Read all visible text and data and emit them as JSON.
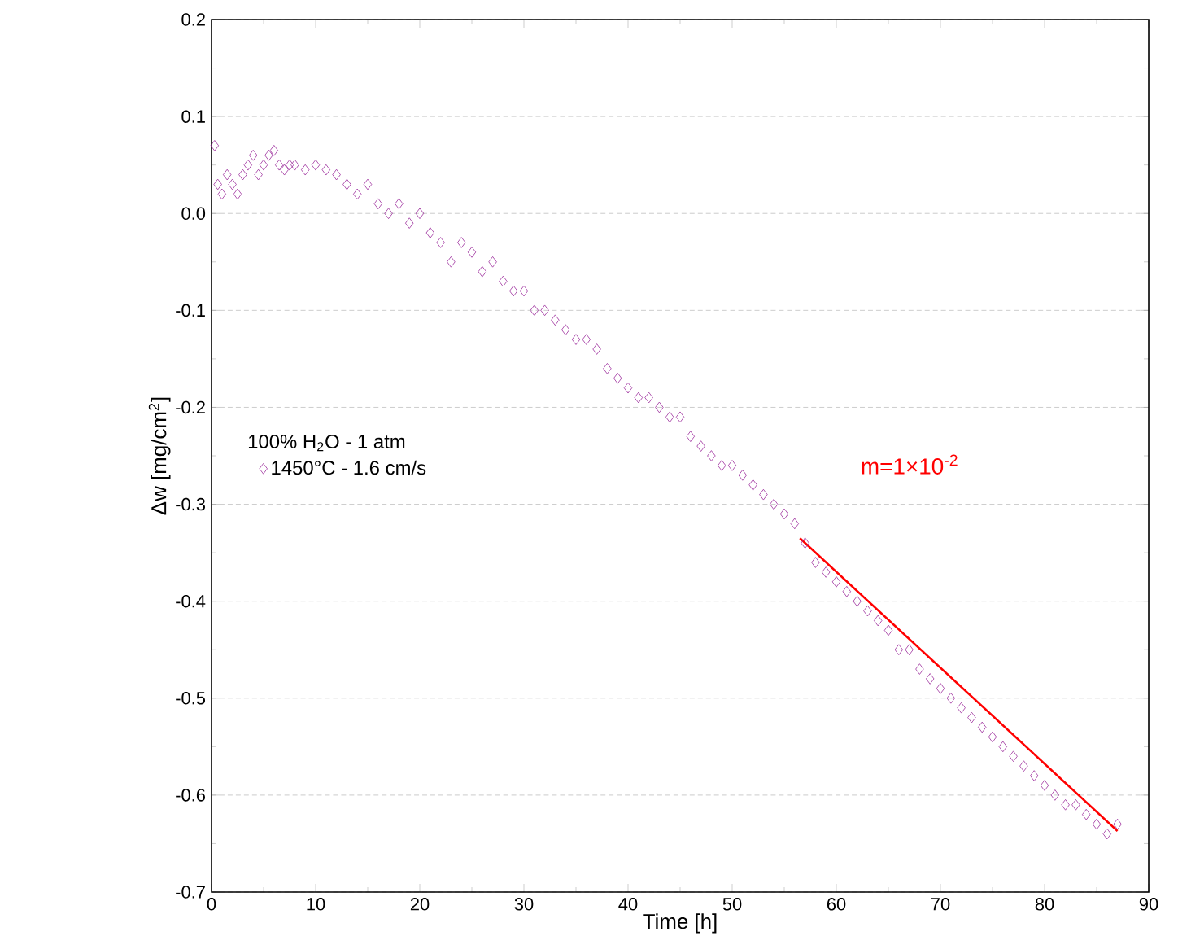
{
  "chart_data": {
    "type": "scatter",
    "xlabel": "Time [h]",
    "ylabel": "Δw [mg/cm$^{2}$]",
    "legend_title": "100% H$_{2}$O - 1 atm",
    "xlim": [
      0,
      90
    ],
    "xticks": [
      0,
      10,
      20,
      30,
      40,
      50,
      60,
      70,
      80,
      90
    ],
    "ylim": [
      -0.7,
      0.2
    ],
    "yticks": [
      -0.7,
      -0.6,
      -0.5,
      -0.4,
      -0.3,
      -0.2,
      -0.1,
      {
        "value": 0,
        "label": "0.0"
      },
      0.1,
      0.2
    ],
    "grid": "y",
    "legend": "left",
    "annotations": [
      "m=1×10$^{-2}$"
    ],
    "series": [
      {
        "name": "1450°C - 1.6 cm/s",
        "color": "#9b2a9b",
        "marker": "diamond",
        "x": [
          0.3,
          0.6,
          1,
          1.5,
          2,
          2.5,
          3,
          3.5,
          4,
          4.5,
          5,
          5.5,
          6,
          6.5,
          7,
          7.5,
          8,
          9,
          10,
          11,
          12,
          13,
          14,
          15,
          16,
          17,
          18,
          19,
          20,
          21,
          22,
          23,
          24,
          25,
          26,
          27,
          28,
          29,
          30,
          31,
          32,
          33,
          34,
          35,
          36,
          37,
          38,
          39,
          40,
          41,
          42,
          43,
          44,
          45,
          46,
          47,
          48,
          49,
          50,
          51,
          52,
          53,
          54,
          55,
          56,
          57,
          58,
          59,
          60,
          61,
          62,
          63,
          64,
          65,
          66,
          67,
          68,
          69,
          70,
          71,
          72,
          73,
          74,
          75,
          76,
          77,
          78,
          79,
          80,
          81,
          82,
          83,
          84,
          85,
          86,
          87
        ],
        "values": [
          0.07,
          0.03,
          0.02,
          0.04,
          0.03,
          0.02,
          0.04,
          0.05,
          0.06,
          0.04,
          0.05,
          0.06,
          0.065,
          0.05,
          0.045,
          0.05,
          0.05,
          0.045,
          0.05,
          0.045,
          0.04,
          0.03,
          0.02,
          0.03,
          0.01,
          0.0,
          0.01,
          -0.01,
          0.0,
          -0.02,
          -0.03,
          -0.05,
          -0.03,
          -0.04,
          -0.06,
          -0.05,
          -0.07,
          -0.08,
          -0.08,
          -0.1,
          -0.1,
          -0.11,
          -0.12,
          -0.13,
          -0.13,
          -0.14,
          -0.16,
          -0.17,
          -0.18,
          -0.19,
          -0.19,
          -0.2,
          -0.21,
          -0.21,
          -0.23,
          -0.24,
          -0.25,
          -0.26,
          -0.26,
          -0.27,
          -0.28,
          -0.29,
          -0.3,
          -0.31,
          -0.32,
          -0.34,
          -0.36,
          -0.37,
          -0.38,
          -0.39,
          -0.4,
          -0.41,
          -0.42,
          -0.43,
          -0.45,
          -0.45,
          -0.47,
          -0.48,
          -0.49,
          -0.5,
          -0.51,
          -0.52,
          -0.53,
          -0.54,
          -0.55,
          -0.56,
          -0.57,
          -0.58,
          -0.59,
          -0.6,
          -0.61,
          -0.61,
          -0.62,
          -0.63,
          -0.64,
          -0.63
        ]
      },
      {
        "color": "#ff0000",
        "type": "line",
        "marker": "none",
        "x": [
          56.5,
          87
        ],
        "values": [
          -0.335,
          -0.637
        ]
      }
    ]
  }
}
